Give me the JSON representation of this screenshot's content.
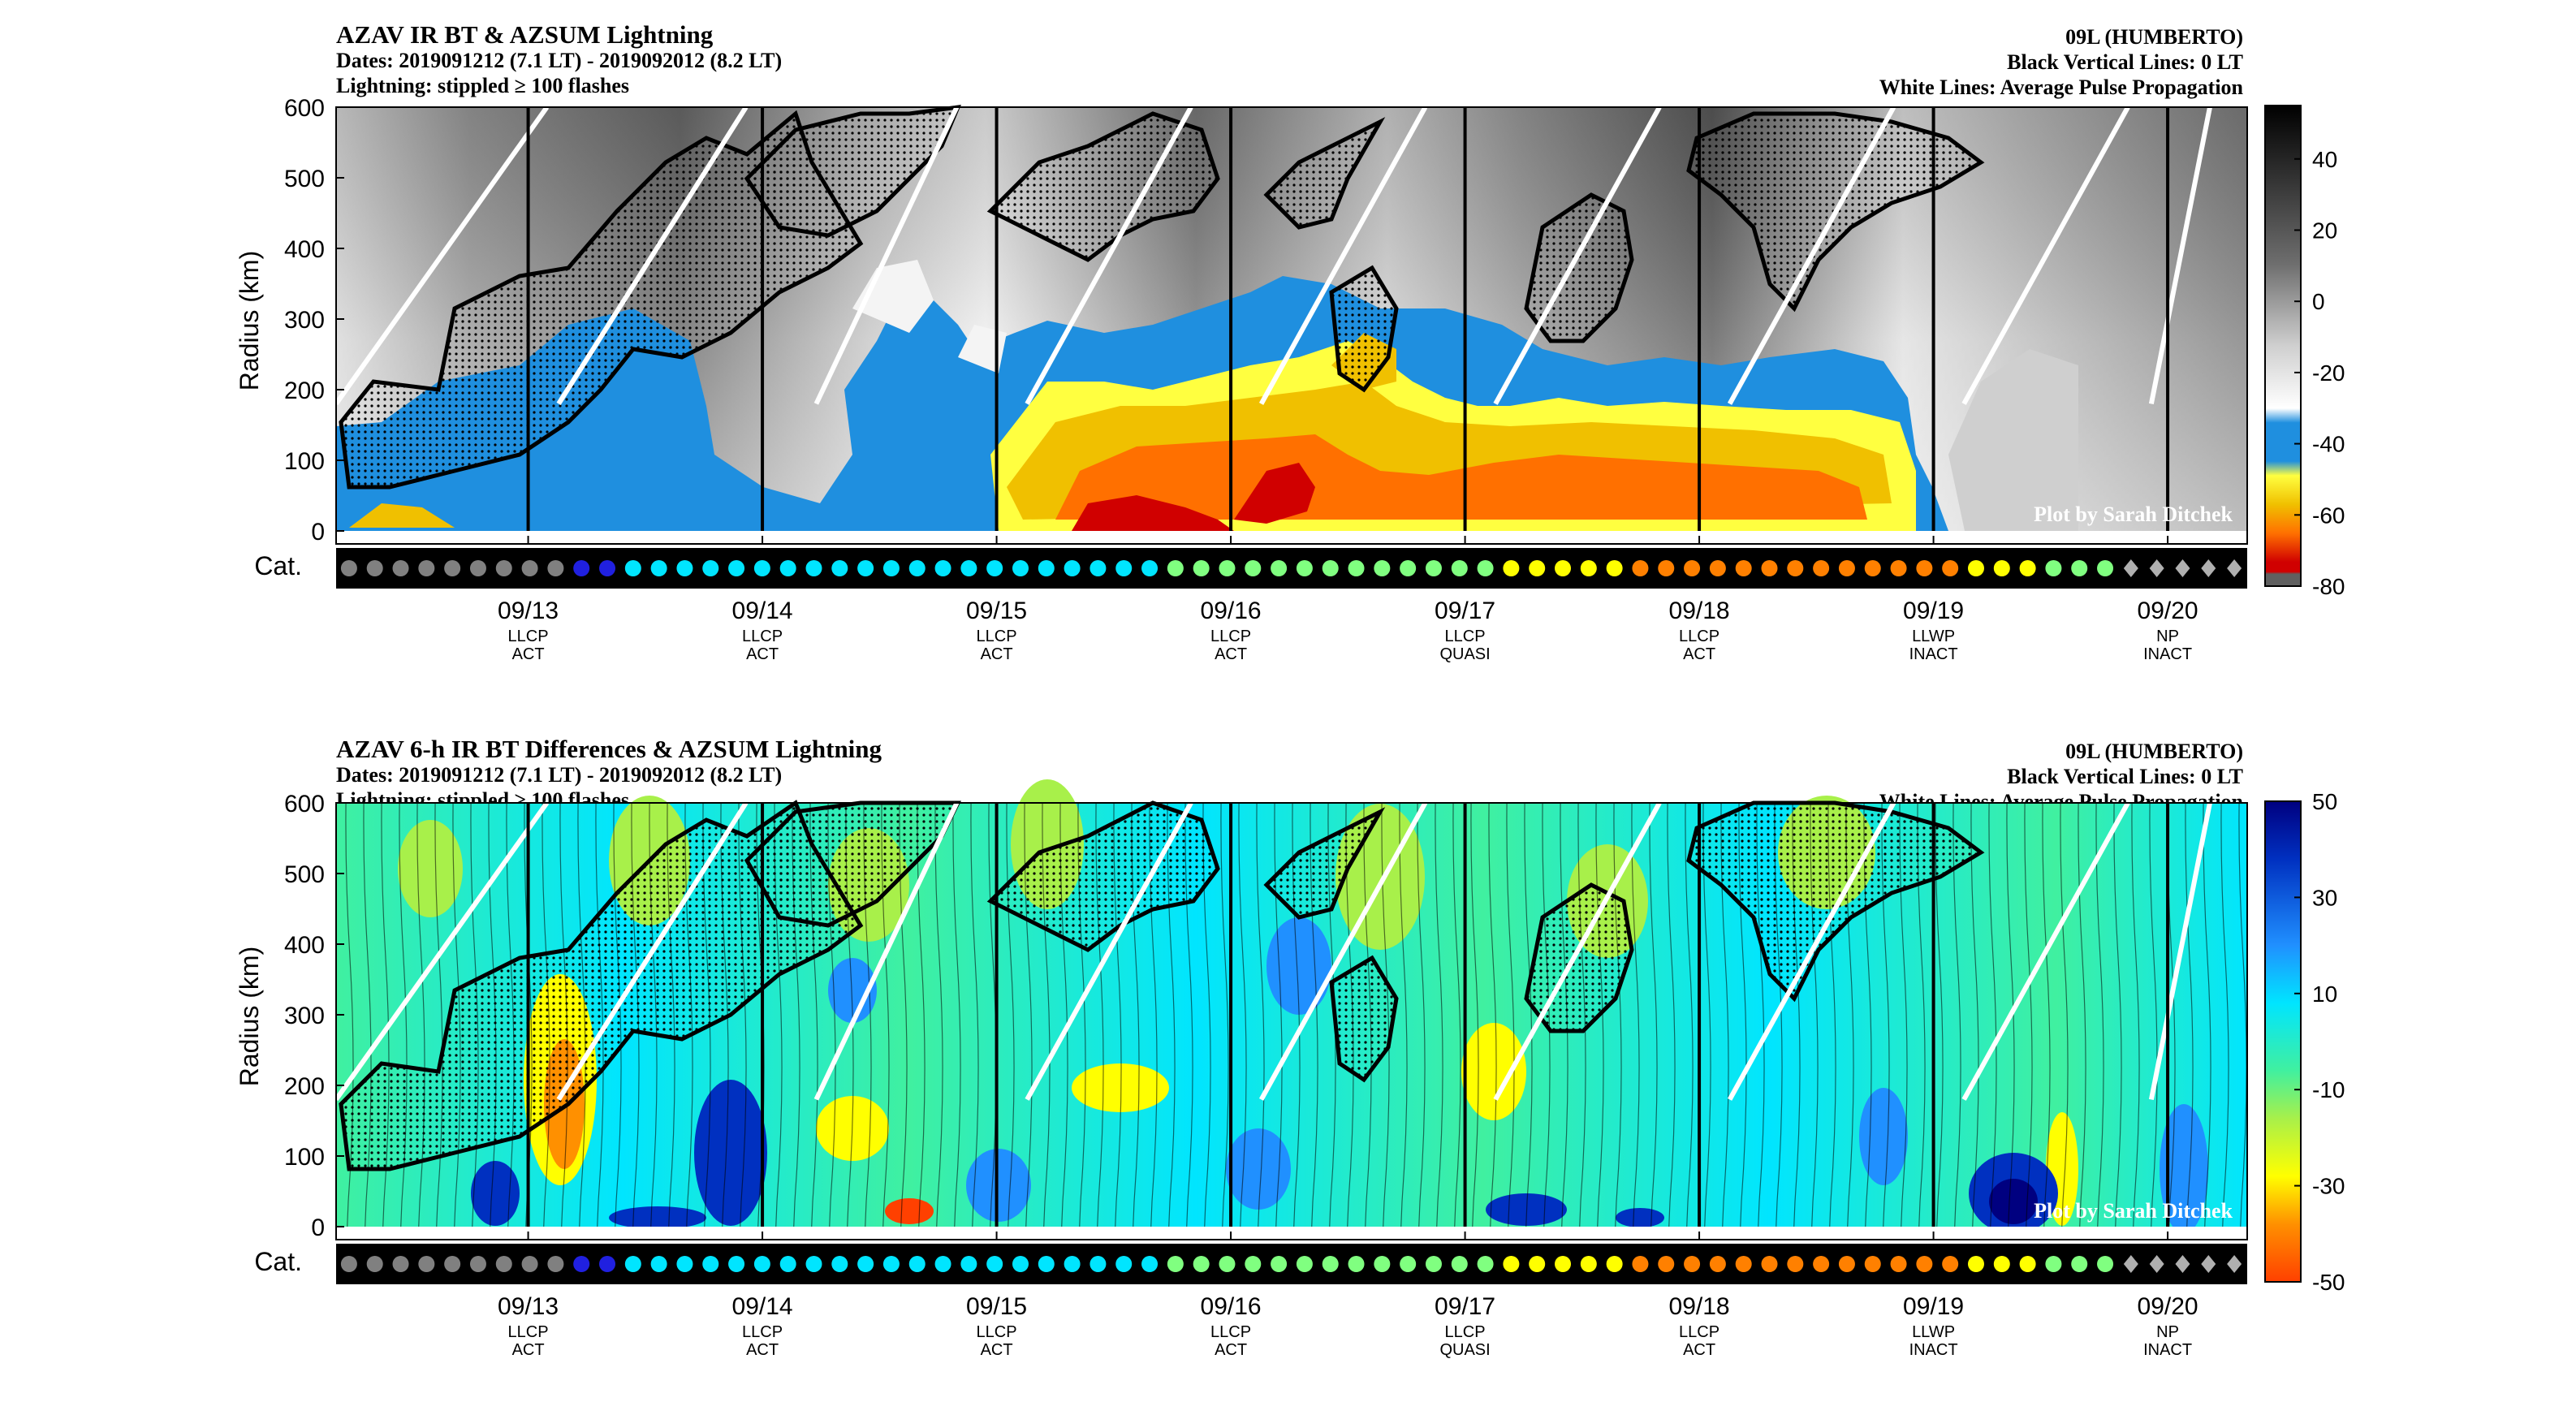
{
  "panels": [
    {
      "title": "AZAV IR BT & AZSUM Lightning",
      "dates_line": "Dates: 2019091212 (7.1 LT) - 2019092012 (8.2 LT)",
      "lightning_line": "Lightning: stippled ≥ 100 flashes",
      "storm": "09L (HUMBERTO)",
      "black_lines_note": "Black Vertical Lines: 0 LT",
      "white_lines_note": "White Lines: Average Pulse Propagation",
      "credit": "Plot by Sarah Ditchek",
      "ylabel": "Radius (km)",
      "cat_label": "Cat.",
      "colorbar_ticks": [
        "40",
        "20",
        "0",
        "-20",
        "-40",
        "-60",
        "-80"
      ]
    },
    {
      "title": "AZAV 6-h IR BT Differences & AZSUM Lightning",
      "dates_line": "Dates: 2019091212 (7.1 LT) - 2019092012 (8.2 LT)",
      "lightning_line": "Lightning: stippled ≥ 100 flashes",
      "storm": "09L (HUMBERTO)",
      "black_lines_note": "Black Vertical Lines: 0 LT",
      "white_lines_note": "White Lines: Average Pulse Propagation",
      "credit": "Plot by Sarah Ditchek",
      "ylabel": "Radius (km)",
      "cat_label": "Cat.",
      "colorbar_ticks": [
        "50",
        "30",
        "10",
        "-10",
        "-30",
        "-50"
      ]
    }
  ],
  "chart_data": [
    {
      "type": "heatmap",
      "title": "AZAV IR BT & AZSUM Lightning",
      "ylabel": "Radius (km)",
      "ylim": [
        0,
        600
      ],
      "yticks": [
        0,
        100,
        200,
        300,
        400,
        500,
        600
      ],
      "xticks": [
        {
          "date": "09/13",
          "phase": "LLCP",
          "state": "ACT"
        },
        {
          "date": "09/14",
          "phase": "LLCP",
          "state": "ACT"
        },
        {
          "date": "09/15",
          "phase": "LLCP",
          "state": "ACT"
        },
        {
          "date": "09/16",
          "phase": "LLCP",
          "state": "ACT"
        },
        {
          "date": "09/17",
          "phase": "LLCP",
          "state": "QUASI"
        },
        {
          "date": "09/18",
          "phase": "LLCP",
          "state": "ACT"
        },
        {
          "date": "09/19",
          "phase": "LLWP",
          "state": "INACT"
        },
        {
          "date": "09/20",
          "phase": "NP",
          "state": "INACT"
        }
      ],
      "colorbar_range": [
        -80,
        55
      ],
      "colorbar_ticks": [
        40,
        20,
        0,
        -20,
        -40,
        -60,
        -80
      ],
      "colormap_colors": [
        "#d00000",
        "#ff7000",
        "#f0c000",
        "#ffff40",
        "#1f8fdf",
        "#ffffff",
        "#000000"
      ],
      "category_colors": {
        "TD": "#808080",
        "TS-low": "#2020e0",
        "TS": "#00e5ff",
        "C1": "#80ff80",
        "C2": "#ffff00",
        "C3": "#ff8000",
        "PT": "#b0b0b0"
      },
      "category_sequence": [
        "TD",
        "TD",
        "TD",
        "TD",
        "TD",
        "TD",
        "TD",
        "TD",
        "TD",
        "TS-low",
        "TS-low",
        "TS",
        "TS",
        "TS",
        "TS",
        "TS",
        "TS",
        "TS",
        "TS",
        "TS",
        "TS",
        "TS",
        "TS",
        "TS",
        "TS",
        "TS",
        "TS",
        "TS",
        "TS",
        "TS",
        "TS",
        "TS",
        "C1",
        "C1",
        "C1",
        "C1",
        "C1",
        "C1",
        "C1",
        "C1",
        "C1",
        "C1",
        "C1",
        "C1",
        "C1",
        "C2",
        "C2",
        "C2",
        "C2",
        "C2",
        "C3",
        "C3",
        "C3",
        "C3",
        "C3",
        "C3",
        "C3",
        "C3",
        "C3",
        "C3",
        "C3",
        "C3",
        "C3",
        "C2",
        "C2",
        "C2",
        "C1",
        "C1",
        "C1",
        "PT",
        "PT",
        "PT",
        "PT",
        "PT"
      ],
      "pulse_lines": [
        {
          "start_day": 0.0,
          "end_day": 0.9
        },
        {
          "start_day": 0.95,
          "end_day": 1.75
        },
        {
          "start_day": 2.05,
          "end_day": 2.65
        },
        {
          "start_day": 2.95,
          "end_day": 3.65
        },
        {
          "start_day": 3.95,
          "end_day": 4.65
        },
        {
          "start_day": 4.95,
          "end_day": 5.65
        },
        {
          "start_day": 5.95,
          "end_day": 6.65
        },
        {
          "start_day": 6.95,
          "end_day": 7.65
        },
        {
          "start_day": 7.75,
          "end_day": 8.0
        }
      ]
    },
    {
      "type": "heatmap",
      "title": "AZAV 6-h IR BT Differences & AZSUM Lightning",
      "ylabel": "Radius (km)",
      "ylim": [
        0,
        600
      ],
      "yticks": [
        0,
        100,
        200,
        300,
        400,
        500,
        600
      ],
      "colorbar_range": [
        -50,
        50
      ],
      "colorbar_ticks": [
        50,
        30,
        10,
        -10,
        -30,
        -50
      ],
      "colormap_colors": [
        "#ff4000",
        "#ff9000",
        "#ffff00",
        "#a8f04a",
        "#40f0a0",
        "#00e5ff",
        "#2090ff",
        "#0030c0",
        "#000080"
      ]
    }
  ]
}
